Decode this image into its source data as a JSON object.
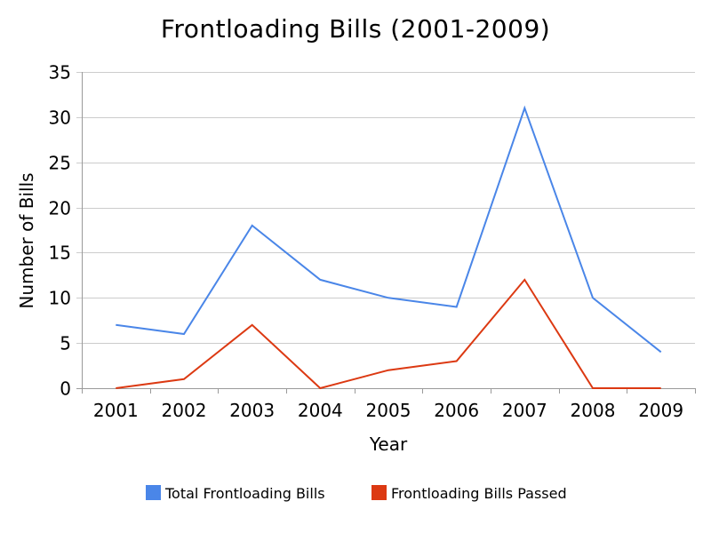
{
  "chart_data": {
    "type": "line",
    "title": "Frontloading Bills (2001-2009)",
    "xlabel": "Year",
    "ylabel": "Number of Bills",
    "categories": [
      "2001",
      "2002",
      "2003",
      "2004",
      "2005",
      "2006",
      "2007",
      "2008",
      "2009"
    ],
    "ylim": [
      0,
      35
    ],
    "yticks": [
      0,
      5,
      10,
      15,
      20,
      25,
      30,
      35
    ],
    "grid": true,
    "legend_position": "bottom",
    "series": [
      {
        "name": "Total Frontloading Bills",
        "color": "#4a86e8",
        "values": [
          7,
          6,
          18,
          12,
          10,
          9,
          31,
          10,
          4
        ]
      },
      {
        "name": "Frontloading Bills Passed",
        "color": "#dc3912",
        "values": [
          0,
          1,
          7,
          0,
          2,
          3,
          12,
          0,
          0
        ]
      }
    ]
  }
}
